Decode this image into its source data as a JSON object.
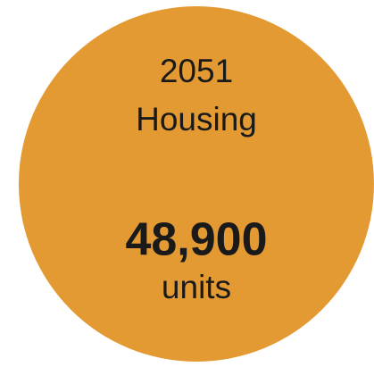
{
  "badge": {
    "year": "2051",
    "label": "Housing",
    "value": "48,900",
    "unit": "units",
    "color": "#e49a33"
  }
}
